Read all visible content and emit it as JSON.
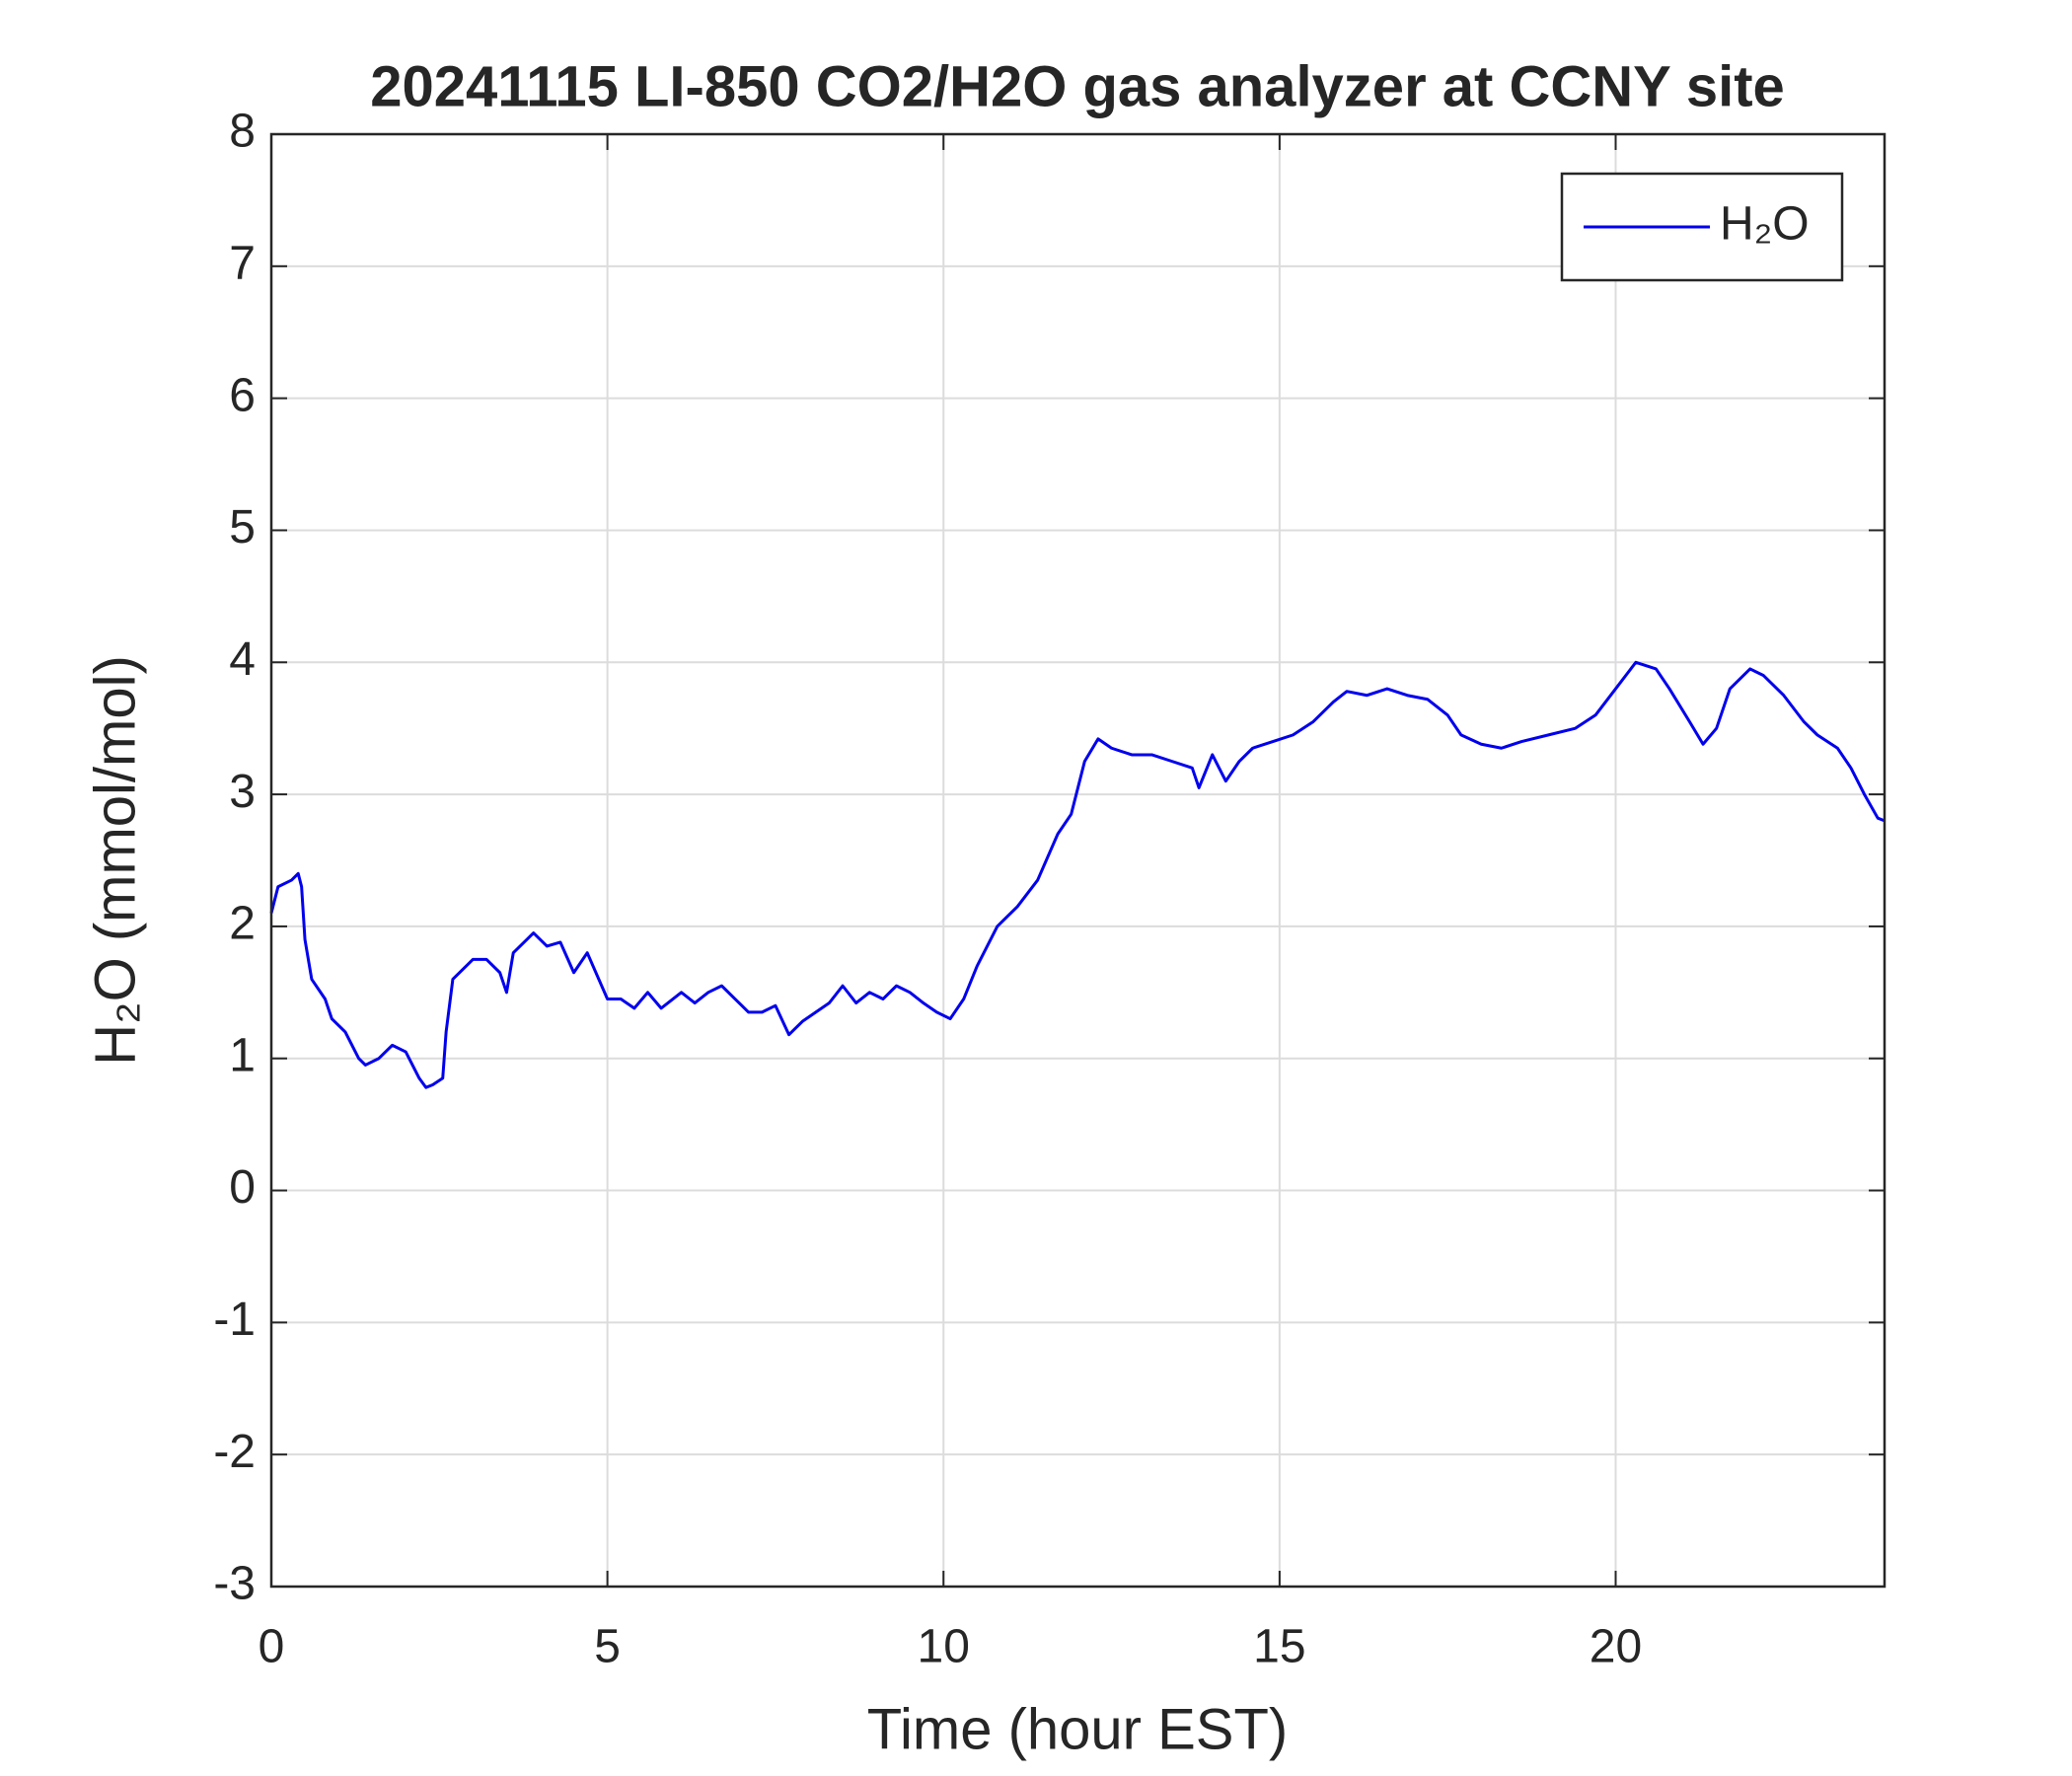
{
  "chart_data": {
    "type": "line",
    "title": "20241115 LI-850 CO2/H2O gas analyzer at CCNY site",
    "xlabel": "Time (hour EST)",
    "ylabel": "H₂O (mmol/mol)",
    "xlim": [
      0,
      24
    ],
    "xticks": [
      0,
      5,
      10,
      15,
      20
    ],
    "ylim": [
      -3,
      8
    ],
    "yticks": [
      -3,
      -2,
      -1,
      0,
      1,
      2,
      3,
      4,
      5,
      6,
      7,
      8
    ],
    "grid": true,
    "legend": "upper right",
    "x": [
      0,
      0.1,
      0.3,
      0.4,
      0.45,
      0.5,
      0.6,
      0.8,
      0.9,
      1.1,
      1.3,
      1.4,
      1.6,
      1.8,
      2.0,
      2.1,
      2.2,
      2.3,
      2.4,
      2.55,
      2.6,
      2.7,
      2.9,
      3.0,
      3.2,
      3.4,
      3.5,
      3.6,
      3.8,
      3.9,
      4.1,
      4.3,
      4.5,
      4.7,
      5.0,
      5.2,
      5.4,
      5.6,
      5.8,
      6.1,
      6.3,
      6.5,
      6.7,
      6.9,
      7.1,
      7.3,
      7.5,
      7.7,
      7.9,
      8.1,
      8.3,
      8.5,
      8.7,
      8.9,
      9.1,
      9.3,
      9.5,
      9.7,
      9.9,
      10.1,
      10.3,
      10.5,
      10.8,
      11.1,
      11.4,
      11.7,
      11.9,
      12.1,
      12.3,
      12.5,
      12.8,
      13.1,
      13.4,
      13.7,
      13.8,
      14.0,
      14.2,
      14.4,
      14.6,
      14.9,
      15.2,
      15.5,
      15.8,
      16.0,
      16.3,
      16.6,
      16.9,
      17.2,
      17.5,
      17.7,
      18.0,
      18.3,
      18.6,
      19.0,
      19.4,
      19.7,
      20.0,
      20.3,
      20.6,
      20.8,
      21.1,
      21.3,
      21.5,
      21.7,
      22.0,
      22.2,
      22.5,
      22.8,
      23.0,
      23.3,
      23.5,
      23.7,
      23.9,
      24.0
    ],
    "series": [
      {
        "name": "H₂O",
        "color": "#0000ee",
        "values": [
          2.1,
          2.3,
          2.35,
          2.4,
          2.3,
          1.9,
          1.6,
          1.45,
          1.3,
          1.2,
          1.0,
          0.95,
          1.0,
          1.1,
          1.05,
          0.95,
          0.85,
          0.78,
          0.8,
          0.85,
          1.2,
          1.6,
          1.7,
          1.75,
          1.75,
          1.65,
          1.5,
          1.8,
          1.9,
          1.95,
          1.85,
          1.88,
          1.65,
          1.8,
          1.45,
          1.45,
          1.38,
          1.5,
          1.38,
          1.5,
          1.42,
          1.5,
          1.55,
          1.45,
          1.35,
          1.35,
          1.4,
          1.18,
          1.28,
          1.35,
          1.42,
          1.55,
          1.42,
          1.5,
          1.45,
          1.55,
          1.5,
          1.42,
          1.35,
          1.3,
          1.45,
          1.7,
          2.0,
          2.15,
          2.35,
          2.7,
          2.85,
          3.25,
          3.42,
          3.35,
          3.3,
          3.3,
          3.25,
          3.2,
          3.05,
          3.3,
          3.1,
          3.25,
          3.35,
          3.4,
          3.45,
          3.55,
          3.7,
          3.78,
          3.75,
          3.8,
          3.75,
          3.72,
          3.6,
          3.45,
          3.38,
          3.35,
          3.4,
          3.45,
          3.5,
          3.6,
          3.8,
          4.0,
          3.95,
          3.8,
          3.55,
          3.38,
          3.5,
          3.8,
          3.95,
          3.9,
          3.75,
          3.55,
          3.45,
          3.35,
          3.2,
          3.0,
          2.82,
          2.8
        ]
      }
    ]
  }
}
